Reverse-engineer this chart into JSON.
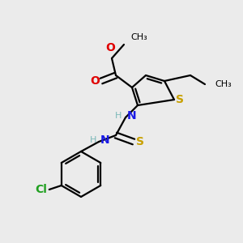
{
  "background_color": "#ebebeb",
  "atom_colors": {
    "C": "#000000",
    "H": "#7ab8b8",
    "N": "#1a1ae6",
    "O": "#e00000",
    "S": "#c8a000",
    "Cl": "#20a020"
  },
  "bond_color": "#000000",
  "bond_width": 1.6,
  "font_size_atom": 10,
  "font_size_small": 8
}
